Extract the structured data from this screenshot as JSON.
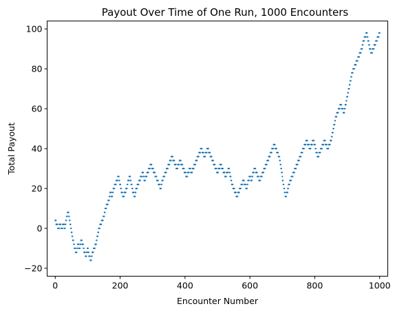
{
  "chart_data": {
    "type": "scatter",
    "title": "Payout Over Time of One Run, 1000 Encounters",
    "xlabel": "Encounter Number",
    "ylabel": "Total Payout",
    "xlim": [
      -25,
      1025
    ],
    "ylim": [
      -24,
      104
    ],
    "x_ticks": [
      0,
      200,
      400,
      600,
      800,
      1000
    ],
    "y_ticks": [
      -20,
      0,
      20,
      40,
      60,
      80,
      100
    ],
    "grid": false,
    "legend": "none",
    "marker_color": "#1f77b4",
    "series": [
      {
        "points": [
          [
            0,
            4
          ],
          [
            5,
            2
          ],
          [
            10,
            0
          ],
          [
            15,
            2
          ],
          [
            20,
            0
          ],
          [
            25,
            2
          ],
          [
            30,
            0
          ],
          [
            35,
            6
          ],
          [
            40,
            8
          ],
          [
            45,
            4
          ],
          [
            50,
            -2
          ],
          [
            55,
            -6
          ],
          [
            60,
            -10
          ],
          [
            65,
            -12
          ],
          [
            70,
            -8
          ],
          [
            75,
            -10
          ],
          [
            80,
            -6
          ],
          [
            85,
            -8
          ],
          [
            90,
            -12
          ],
          [
            95,
            -14
          ],
          [
            100,
            -10
          ],
          [
            105,
            -14
          ],
          [
            110,
            -16
          ],
          [
            115,
            -12
          ],
          [
            120,
            -10
          ],
          [
            125,
            -8
          ],
          [
            130,
            -4
          ],
          [
            135,
            0
          ],
          [
            140,
            2
          ],
          [
            145,
            4
          ],
          [
            150,
            6
          ],
          [
            155,
            10
          ],
          [
            160,
            12
          ],
          [
            165,
            14
          ],
          [
            170,
            18
          ],
          [
            175,
            16
          ],
          [
            180,
            20
          ],
          [
            185,
            22
          ],
          [
            190,
            24
          ],
          [
            195,
            26
          ],
          [
            200,
            22
          ],
          [
            205,
            18
          ],
          [
            210,
            16
          ],
          [
            215,
            18
          ],
          [
            220,
            20
          ],
          [
            225,
            24
          ],
          [
            230,
            26
          ],
          [
            235,
            22
          ],
          [
            240,
            18
          ],
          [
            245,
            16
          ],
          [
            250,
            20
          ],
          [
            255,
            22
          ],
          [
            260,
            24
          ],
          [
            265,
            26
          ],
          [
            270,
            28
          ],
          [
            275,
            24
          ],
          [
            280,
            26
          ],
          [
            285,
            28
          ],
          [
            290,
            30
          ],
          [
            295,
            32
          ],
          [
            300,
            30
          ],
          [
            305,
            28
          ],
          [
            310,
            26
          ],
          [
            315,
            24
          ],
          [
            320,
            22
          ],
          [
            325,
            20
          ],
          [
            330,
            24
          ],
          [
            335,
            26
          ],
          [
            340,
            28
          ],
          [
            345,
            30
          ],
          [
            350,
            32
          ],
          [
            355,
            34
          ],
          [
            360,
            36
          ],
          [
            365,
            34
          ],
          [
            370,
            32
          ],
          [
            375,
            30
          ],
          [
            380,
            32
          ],
          [
            385,
            34
          ],
          [
            390,
            32
          ],
          [
            395,
            30
          ],
          [
            400,
            28
          ],
          [
            405,
            26
          ],
          [
            410,
            28
          ],
          [
            415,
            30
          ],
          [
            420,
            28
          ],
          [
            425,
            30
          ],
          [
            430,
            32
          ],
          [
            435,
            34
          ],
          [
            440,
            36
          ],
          [
            445,
            38
          ],
          [
            450,
            40
          ],
          [
            455,
            38
          ],
          [
            460,
            36
          ],
          [
            465,
            38
          ],
          [
            470,
            40
          ],
          [
            475,
            38
          ],
          [
            480,
            36
          ],
          [
            485,
            34
          ],
          [
            490,
            32
          ],
          [
            495,
            30
          ],
          [
            500,
            28
          ],
          [
            505,
            30
          ],
          [
            510,
            32
          ],
          [
            515,
            30
          ],
          [
            520,
            28
          ],
          [
            525,
            26
          ],
          [
            530,
            28
          ],
          [
            535,
            30
          ],
          [
            540,
            26
          ],
          [
            545,
            22
          ],
          [
            550,
            20
          ],
          [
            555,
            18
          ],
          [
            560,
            16
          ],
          [
            565,
            18
          ],
          [
            570,
            20
          ],
          [
            575,
            22
          ],
          [
            580,
            24
          ],
          [
            585,
            22
          ],
          [
            590,
            20
          ],
          [
            595,
            24
          ],
          [
            600,
            26
          ],
          [
            605,
            24
          ],
          [
            610,
            28
          ],
          [
            615,
            30
          ],
          [
            620,
            28
          ],
          [
            625,
            26
          ],
          [
            630,
            24
          ],
          [
            635,
            26
          ],
          [
            640,
            28
          ],
          [
            645,
            30
          ],
          [
            650,
            32
          ],
          [
            655,
            34
          ],
          [
            660,
            36
          ],
          [
            665,
            38
          ],
          [
            670,
            40
          ],
          [
            675,
            42
          ],
          [
            680,
            40
          ],
          [
            685,
            38
          ],
          [
            690,
            36
          ],
          [
            695,
            32
          ],
          [
            700,
            26
          ],
          [
            705,
            20
          ],
          [
            710,
            16
          ],
          [
            715,
            18
          ],
          [
            720,
            22
          ],
          [
            725,
            24
          ],
          [
            730,
            26
          ],
          [
            735,
            28
          ],
          [
            740,
            30
          ],
          [
            745,
            32
          ],
          [
            750,
            34
          ],
          [
            755,
            36
          ],
          [
            760,
            38
          ],
          [
            765,
            40
          ],
          [
            770,
            42
          ],
          [
            775,
            44
          ],
          [
            780,
            42
          ],
          [
            785,
            40
          ],
          [
            790,
            42
          ],
          [
            795,
            44
          ],
          [
            800,
            42
          ],
          [
            805,
            38
          ],
          [
            810,
            36
          ],
          [
            815,
            38
          ],
          [
            820,
            40
          ],
          [
            825,
            42
          ],
          [
            830,
            44
          ],
          [
            835,
            42
          ],
          [
            840,
            40
          ],
          [
            845,
            42
          ],
          [
            850,
            44
          ],
          [
            855,
            48
          ],
          [
            860,
            52
          ],
          [
            865,
            56
          ],
          [
            870,
            58
          ],
          [
            875,
            60
          ],
          [
            880,
            62
          ],
          [
            885,
            60
          ],
          [
            890,
            58
          ],
          [
            895,
            62
          ],
          [
            900,
            66
          ],
          [
            905,
            70
          ],
          [
            910,
            74
          ],
          [
            915,
            78
          ],
          [
            920,
            80
          ],
          [
            925,
            82
          ],
          [
            930,
            84
          ],
          [
            935,
            86
          ],
          [
            940,
            88
          ],
          [
            945,
            90
          ],
          [
            950,
            94
          ],
          [
            955,
            96
          ],
          [
            960,
            98
          ],
          [
            965,
            94
          ],
          [
            970,
            90
          ],
          [
            975,
            88
          ],
          [
            980,
            90
          ],
          [
            985,
            92
          ],
          [
            990,
            94
          ],
          [
            995,
            96
          ],
          [
            1000,
            98
          ]
        ]
      }
    ]
  }
}
